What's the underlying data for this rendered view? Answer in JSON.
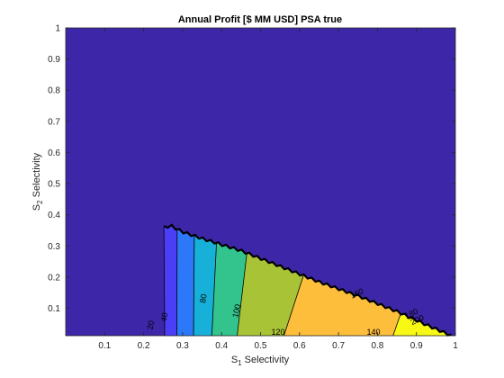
{
  "chart_data": {
    "type": "contour",
    "title": "Annual Profit [$ MM USD] PSA true",
    "xlabel": "S",
    "xlabel_sub": "1",
    "xlabel_rest": " Selectivity",
    "ylabel": "S",
    "ylabel_sub": "2",
    "ylabel_rest": " Selectivity",
    "xlim": [
      0,
      1
    ],
    "ylim": [
      0.012,
      1
    ],
    "xticks": [
      0.1,
      0.2,
      0.3,
      0.4,
      0.5,
      0.6,
      0.7,
      0.8,
      0.9,
      1
    ],
    "xtick_labels": [
      "0.1",
      "0.2",
      "0.3",
      "0.4",
      "0.5",
      "0.6",
      "0.7",
      "0.8",
      "0.9",
      "1"
    ],
    "yticks": [
      0.1,
      0.2,
      0.3,
      0.4,
      0.5,
      0.6,
      0.7,
      0.8,
      0.9,
      1
    ],
    "ytick_labels": [
      "0.1",
      "0.2",
      "0.3",
      "0.4",
      "0.5",
      "0.6",
      "0.7",
      "0.8",
      "0.9",
      "1"
    ],
    "grid": false,
    "background_color": "#3e26a8",
    "feasible_boundary": [
      [
        0.254,
        0.012
      ],
      [
        0.252,
        0.36
      ],
      [
        0.27,
        0.365
      ],
      [
        0.3,
        0.345
      ],
      [
        0.36,
        0.32
      ],
      [
        0.45,
        0.285
      ],
      [
        0.55,
        0.235
      ],
      [
        0.65,
        0.185
      ],
      [
        0.75,
        0.14
      ],
      [
        0.85,
        0.09
      ],
      [
        0.92,
        0.05
      ],
      [
        0.99,
        0.012
      ]
    ],
    "bands": [
      {
        "x_bottom": 0.254,
        "x_top": 0.252,
        "color": "#4a3ef6"
      },
      {
        "x_bottom": 0.285,
        "x_top": 0.286,
        "color": "#2c78f8"
      },
      {
        "x_bottom": 0.328,
        "x_top": 0.33,
        "color": "#17b0d8"
      },
      {
        "x_bottom": 0.375,
        "x_top": 0.387,
        "color": "#33c48d"
      },
      {
        "x_bottom": 0.44,
        "x_top": 0.465,
        "color": "#a8c436"
      },
      {
        "x_bottom": 0.56,
        "x_top": 0.61,
        "color": "#fdbe3c"
      },
      {
        "x_bottom": 0.84,
        "x_top": 0.86,
        "color": "#f8f815"
      },
      {
        "x_bottom": 0.99,
        "x_top": 0.99,
        "color": "#f8f815"
      }
    ],
    "contour_labels": [
      {
        "text": "20",
        "x": 0.225,
        "y": 0.045,
        "angle": -80
      },
      {
        "text": "40",
        "x": 0.26,
        "y": 0.07,
        "angle": -80
      },
      {
        "text": "80",
        "x": 0.36,
        "y": 0.13,
        "angle": -80
      },
      {
        "text": "100",
        "x": 0.445,
        "y": 0.09,
        "angle": -78
      },
      {
        "text": "120",
        "x": 0.545,
        "y": 0.012,
        "angle": 0
      },
      {
        "text": "140",
        "x": 0.79,
        "y": 0.012,
        "angle": 0
      },
      {
        "text": "160",
        "x": 0.75,
        "y": 0.14,
        "angle": -25
      },
      {
        "text": "180",
        "x": 0.89,
        "y": 0.075,
        "angle": -25
      },
      {
        "text": "200",
        "x": 0.905,
        "y": 0.055,
        "angle": -25
      }
    ],
    "colors": {
      "axis": "#262626",
      "contour_line": "#000000"
    }
  }
}
